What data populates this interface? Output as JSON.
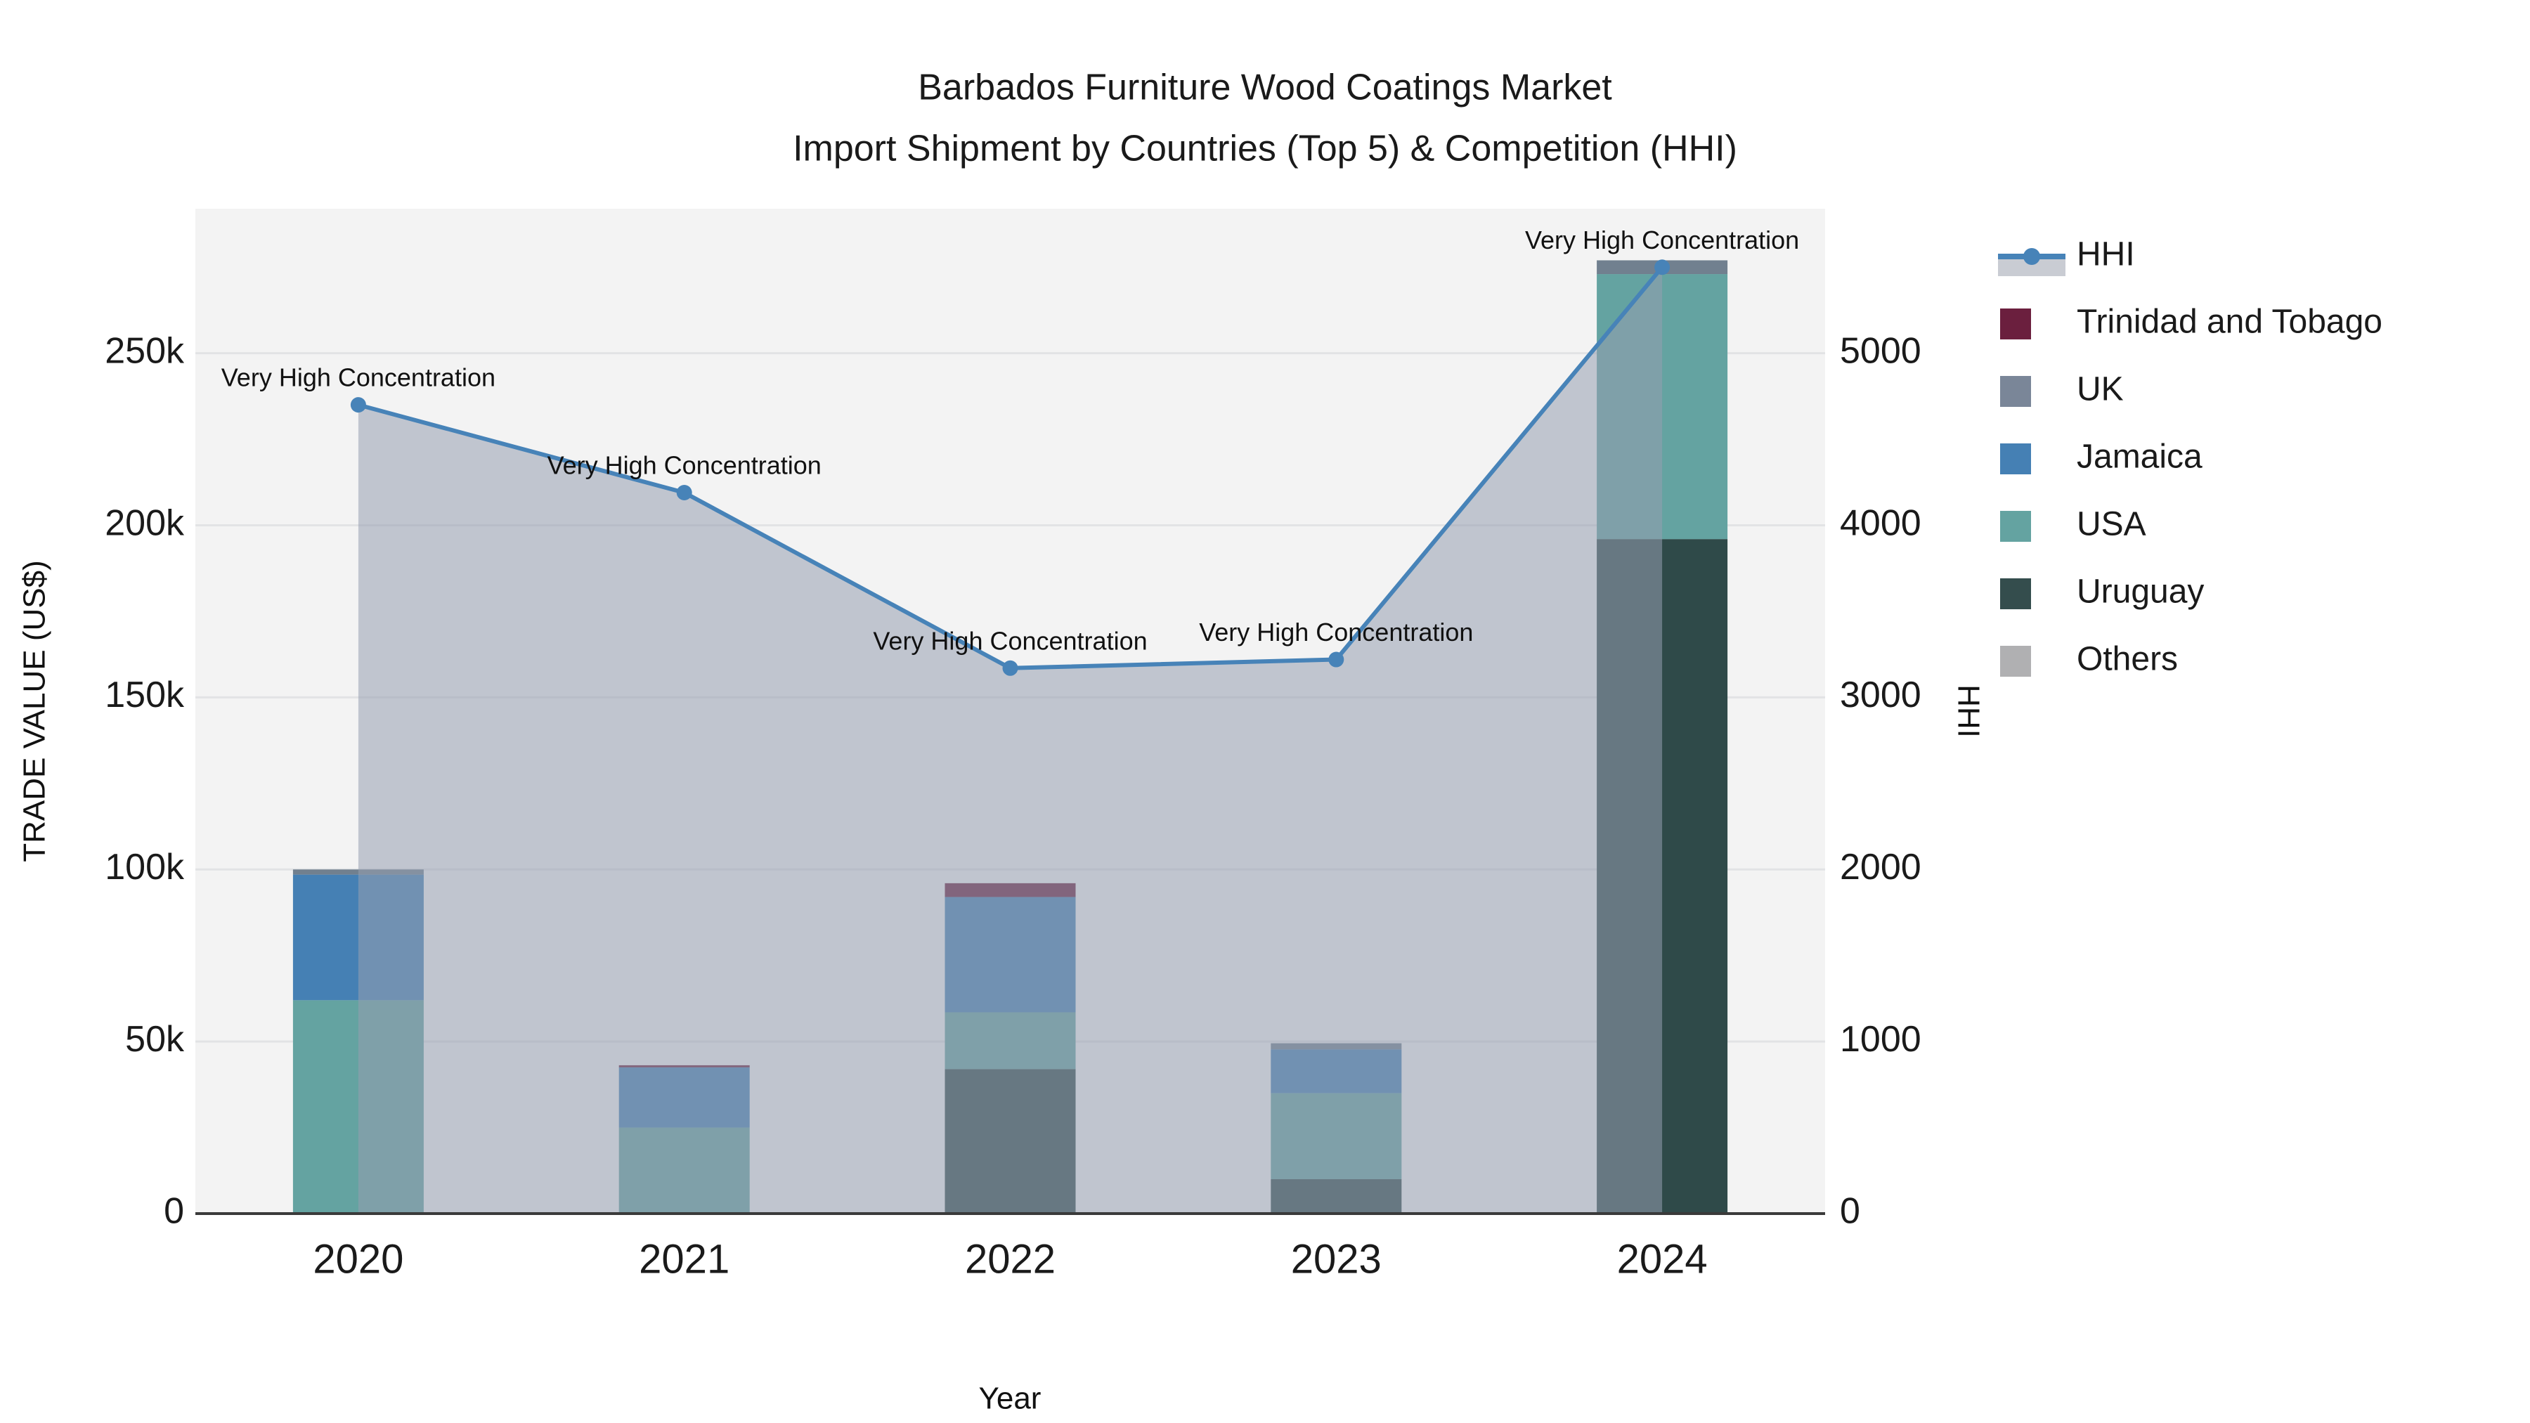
{
  "title": {
    "line1": "Barbados Furniture Wood Coatings Market",
    "line2": "Import Shipment by Countries (Top 5) & Competition (HHI)"
  },
  "axes": {
    "x": {
      "title": "Year",
      "categories": [
        "2020",
        "2021",
        "2022",
        "2023",
        "2024"
      ]
    },
    "y_left": {
      "title": "TRADE VALUE (US$)",
      "ticks": [
        {
          "label": "0",
          "value": 0
        },
        {
          "label": "50k",
          "value": 50000
        },
        {
          "label": "100k",
          "value": 100000
        },
        {
          "label": "150k",
          "value": 150000
        },
        {
          "label": "200k",
          "value": 200000
        },
        {
          "label": "250k",
          "value": 250000
        }
      ],
      "max": 292000
    },
    "y_right": {
      "title": "HHI",
      "ticks": [
        {
          "label": "0",
          "value": 0
        },
        {
          "label": "1000",
          "value": 1000
        },
        {
          "label": "2000",
          "value": 2000
        },
        {
          "label": "3000",
          "value": 3000
        },
        {
          "label": "4000",
          "value": 4000
        },
        {
          "label": "5000",
          "value": 5000
        }
      ],
      "max": 5840,
      "left_units_per_right_unit": 50
    }
  },
  "chart_data": [
    {
      "type": "bar",
      "stacked": true,
      "title": "Import Shipment by Countries (Top 5)",
      "xlabel": "Year",
      "ylabel": "TRADE VALUE (US$)",
      "ylim": [
        0,
        292000
      ],
      "categories": [
        "2020",
        "2021",
        "2022",
        "2023",
        "2024"
      ],
      "series": [
        {
          "name": "Uruguay",
          "color": "#2f4a49",
          "values": [
            0,
            0,
            42000,
            10000,
            196000
          ]
        },
        {
          "name": "USA",
          "color": "#64a3a1",
          "values": [
            62000,
            25000,
            16500,
            25000,
            77000
          ]
        },
        {
          "name": "Jamaica",
          "color": "#4580b4",
          "values": [
            36500,
            17500,
            33500,
            12700,
            0
          ]
        },
        {
          "name": "UK",
          "color": "#71808f",
          "values": [
            1500,
            0,
            0,
            1800,
            4000
          ]
        },
        {
          "name": "Trinidad and Tobago",
          "color": "#6b1f3e",
          "values": [
            0,
            600,
            4000,
            0,
            0
          ]
        },
        {
          "name": "Others",
          "color": "#b0b0b2",
          "values": [
            0,
            0,
            0,
            0,
            0
          ]
        }
      ]
    },
    {
      "type": "line",
      "name": "HHI",
      "ylabel": "HHI",
      "ylim": [
        0,
        5840
      ],
      "x": [
        "2020",
        "2021",
        "2022",
        "2023",
        "2024"
      ],
      "values": [
        4700,
        4190,
        3170,
        3220,
        5500
      ],
      "line_color": "#4783b8",
      "fill": "tozeroy",
      "fill_color": "rgba(150,158,176,0.55)",
      "marker": "circle",
      "annotations": [
        {
          "x": "2020",
          "text": "Very High Concentration"
        },
        {
          "x": "2021",
          "text": "Very High Concentration"
        },
        {
          "x": "2022",
          "text": "Very High Concentration"
        },
        {
          "x": "2023",
          "text": "Very High Concentration"
        },
        {
          "x": "2024",
          "text": "Very High Concentration"
        }
      ]
    }
  ],
  "legend": {
    "entries": [
      {
        "label": "HHI",
        "type": "line",
        "color": "#4783b8"
      },
      {
        "label": "Trinidad and Tobago",
        "type": "swatch",
        "color": "#6b1f3e"
      },
      {
        "label": "UK",
        "type": "swatch",
        "color": "#7a8698"
      },
      {
        "label": "Jamaica",
        "type": "swatch",
        "color": "#4580b4"
      },
      {
        "label": "USA",
        "type": "swatch",
        "color": "#64a3a1"
      },
      {
        "label": "Uruguay",
        "type": "swatch",
        "color": "#344d4d"
      },
      {
        "label": "Others",
        "type": "swatch",
        "color": "#b0b0b2"
      }
    ]
  },
  "style": {
    "plot_bg": "#f3f3f3",
    "grid_color": "#e2e3e5",
    "axis_line_color": "#3a3a3a",
    "fill_band": "#c9ccd3"
  }
}
